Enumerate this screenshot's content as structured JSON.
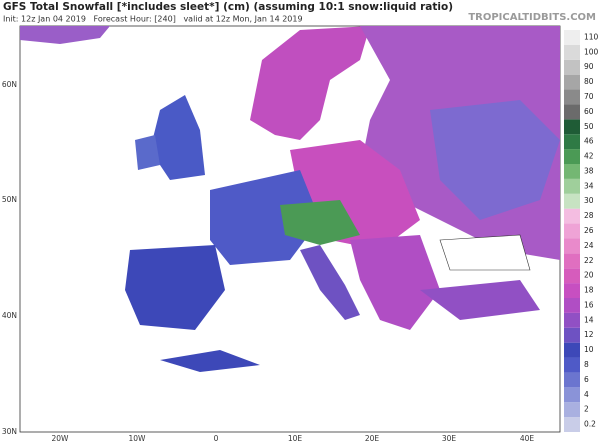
{
  "header": {
    "title": "GFS Total Snowfall [*includes sleet*] (cm) (assuming 10:1 snow:liquid ratio)",
    "subtitle": "Init: 12z Jan 04 2019   Forecast Hour: [240]   valid at 12z Mon, Jan 14 2019",
    "watermark": "TROPICALTIDBITS.COM"
  },
  "map": {
    "lat_labels": [
      "60N",
      "50N",
      "40N",
      "30N"
    ],
    "lon_labels": [
      "20W",
      "10W",
      "0",
      "10E",
      "20E",
      "30E",
      "40E"
    ]
  },
  "colorbar": {
    "labels": [
      0.2,
      2,
      4,
      6,
      8,
      10,
      12,
      14,
      16,
      18,
      20,
      22,
      24,
      26,
      28,
      30,
      34,
      38,
      42,
      46,
      50,
      60,
      70,
      80,
      90,
      100,
      110
    ],
    "colors": [
      "#c9cde8",
      "#a9b0e0",
      "#8a93d8",
      "#6b75cf",
      "#4f5ac7",
      "#3d48b8",
      "#6e52c2",
      "#9150c4",
      "#b04ec4",
      "#c74fc1",
      "#d65cbc",
      "#e06fc0",
      "#e98acb",
      "#efa3d6",
      "#f4bde1",
      "#c7e3c2",
      "#9fcf9b",
      "#74b773",
      "#4b9a55",
      "#2f7a45",
      "#1f5c36",
      "#6b6b6b",
      "#8a8a8a",
      "#a6a6a6",
      "#c2c2c2",
      "#dadada",
      "#eeeeee"
    ]
  }
}
